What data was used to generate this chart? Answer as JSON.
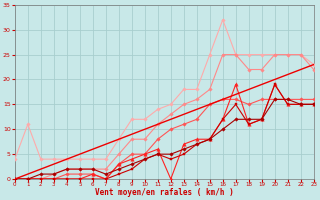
{
  "xlabel": "Vent moyen/en rafales ( km/h )",
  "background_color": "#c8e8e8",
  "grid_color": "#a8cece",
  "x_max": 23,
  "y_max": 35,
  "yticks": [
    0,
    5,
    10,
    15,
    20,
    25,
    30,
    35
  ],
  "series": [
    {
      "color": "#ffaaaa",
      "linewidth": 0.8,
      "marker": "D",
      "markersize": 1.8,
      "x": [
        0,
        1,
        2,
        3,
        4,
        5,
        6,
        7,
        8,
        9,
        10,
        11,
        12,
        13,
        14,
        15,
        16,
        17,
        18,
        19,
        20,
        21,
        22,
        23
      ],
      "y": [
        4,
        11,
        4,
        4,
        4,
        4,
        4,
        4,
        8,
        12,
        12,
        14,
        15,
        18,
        18,
        25,
        32,
        25,
        25,
        25,
        25,
        25,
        25,
        23
      ]
    },
    {
      "color": "#ff8888",
      "linewidth": 0.8,
      "marker": "D",
      "markersize": 1.8,
      "x": [
        0,
        1,
        2,
        3,
        4,
        5,
        6,
        7,
        8,
        9,
        10,
        11,
        12,
        13,
        14,
        15,
        16,
        17,
        18,
        19,
        20,
        21,
        22,
        23
      ],
      "y": [
        0,
        0,
        0,
        1,
        2,
        2,
        2,
        2,
        5,
        8,
        8,
        11,
        13,
        15,
        16,
        18,
        25,
        25,
        22,
        22,
        25,
        25,
        25,
        22
      ]
    },
    {
      "color": "#ff5555",
      "linewidth": 0.8,
      "marker": "D",
      "markersize": 1.8,
      "x": [
        0,
        1,
        2,
        3,
        4,
        5,
        6,
        7,
        8,
        9,
        10,
        11,
        12,
        13,
        14,
        15,
        16,
        17,
        18,
        19,
        20,
        21,
        22,
        23
      ],
      "y": [
        0,
        0,
        0,
        0,
        1,
        1,
        1,
        0,
        3,
        5,
        5,
        8,
        10,
        11,
        12,
        15,
        16,
        16,
        15,
        16,
        16,
        16,
        16,
        16
      ]
    },
    {
      "color": "#ff2222",
      "linewidth": 0.8,
      "marker": "^",
      "markersize": 2.5,
      "x": [
        0,
        1,
        2,
        3,
        4,
        5,
        6,
        7,
        8,
        9,
        10,
        11,
        12,
        13,
        14,
        15,
        16,
        17,
        18,
        19,
        20,
        21,
        22,
        23
      ],
      "y": [
        0,
        0,
        0,
        0,
        0,
        0,
        1,
        0,
        3,
        4,
        5,
        6,
        0,
        7,
        8,
        8,
        12,
        19,
        11,
        12,
        19,
        15,
        15,
        15
      ]
    },
    {
      "color": "#cc0000",
      "linewidth": 0.8,
      "marker": "s",
      "markersize": 2.0,
      "x": [
        0,
        1,
        2,
        3,
        4,
        5,
        6,
        7,
        8,
        9,
        10,
        11,
        12,
        13,
        14,
        15,
        16,
        17,
        18,
        19,
        20,
        21,
        22,
        23
      ],
      "y": [
        0,
        0,
        0,
        0,
        0,
        0,
        0,
        0,
        1,
        2,
        4,
        5,
        4,
        5,
        7,
        8,
        12,
        15,
        11,
        12,
        19,
        15,
        15,
        15
      ]
    },
    {
      "color": "#aa0000",
      "linewidth": 0.8,
      "marker": "D",
      "markersize": 1.8,
      "x": [
        0,
        1,
        2,
        3,
        4,
        5,
        6,
        7,
        8,
        9,
        10,
        11,
        12,
        13,
        14,
        15,
        16,
        17,
        18,
        19,
        20,
        21,
        22,
        23
      ],
      "y": [
        0,
        0,
        1,
        1,
        2,
        2,
        2,
        1,
        2,
        3,
        4,
        5,
        5,
        6,
        7,
        8,
        10,
        12,
        12,
        12,
        16,
        16,
        15,
        15
      ]
    },
    {
      "color": "#ee0000",
      "linewidth": 1.0,
      "marker": "None",
      "markersize": 0,
      "x": [
        0,
        23
      ],
      "y": [
        0,
        23
      ]
    }
  ]
}
